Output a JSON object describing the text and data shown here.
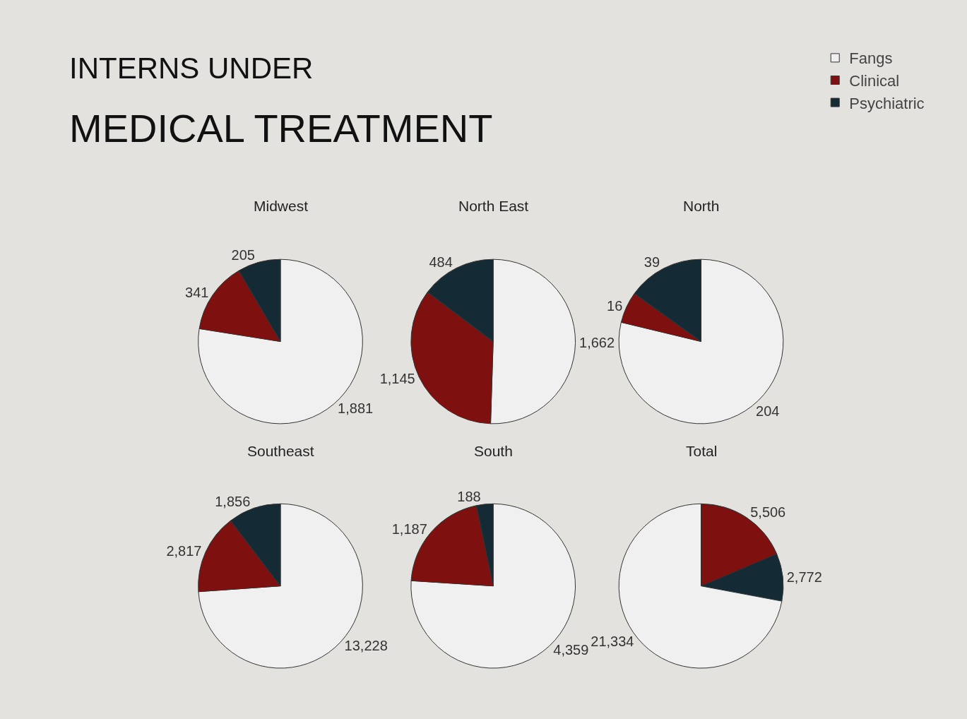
{
  "chart_data": [
    {
      "type": "pie",
      "title": "Midwest",
      "annotations": [
        "INTERNS UNDER",
        "MEDICAL TREATMENT"
      ],
      "categories": [
        "Fangs",
        "Clinical",
        "Psychiatric"
      ],
      "values": [
        1881,
        341,
        205
      ],
      "value_labels": [
        "1,881",
        "341",
        "205"
      ],
      "colors": [
        "#f0f0f0",
        "#7e1010",
        "#142b36"
      ],
      "legend": "top right"
    },
    {
      "type": "pie",
      "title": "North East",
      "categories": [
        null,
        null,
        null
      ],
      "values": [
        1662,
        1145,
        484
      ],
      "value_labels": [
        "1,662",
        "1,145",
        "484"
      ],
      "colors": [
        "#f0f0f0",
        "#7e1010",
        "#142b36"
      ]
    },
    {
      "type": "pie",
      "title": "North",
      "categories": [
        null,
        null,
        null
      ],
      "values": [
        204,
        16,
        39
      ],
      "value_labels": [
        "204",
        "16",
        "39"
      ],
      "colors": [
        "#f0f0f0",
        "#7e1010",
        "#142b36"
      ]
    },
    {
      "type": "pie",
      "title": "Southeast",
      "categories": [
        null,
        null,
        null
      ],
      "values": [
        13228,
        2817,
        1856
      ],
      "value_labels": [
        "13,228",
        "2,817",
        "1,856"
      ],
      "colors": [
        "#f0f0f0",
        "#7e1010",
        "#142b36"
      ]
    },
    {
      "type": "pie",
      "title": "South",
      "categories": [
        null,
        null,
        null
      ],
      "values": [
        4359,
        1187,
        188
      ],
      "value_labels": [
        "4,359",
        "1,187",
        "188"
      ],
      "colors": [
        "#f0f0f0",
        "#7e1010",
        "#142b36"
      ]
    },
    {
      "type": "pie",
      "title": "Total",
      "categories": [
        null,
        null,
        null
      ],
      "values": [
        5506,
        2772,
        21334
      ],
      "value_labels": [
        "5,506",
        "2,772",
        "21,334"
      ],
      "colors": [
        "#7e1010",
        "#142b36",
        "#f0f0f0"
      ]
    }
  ]
}
